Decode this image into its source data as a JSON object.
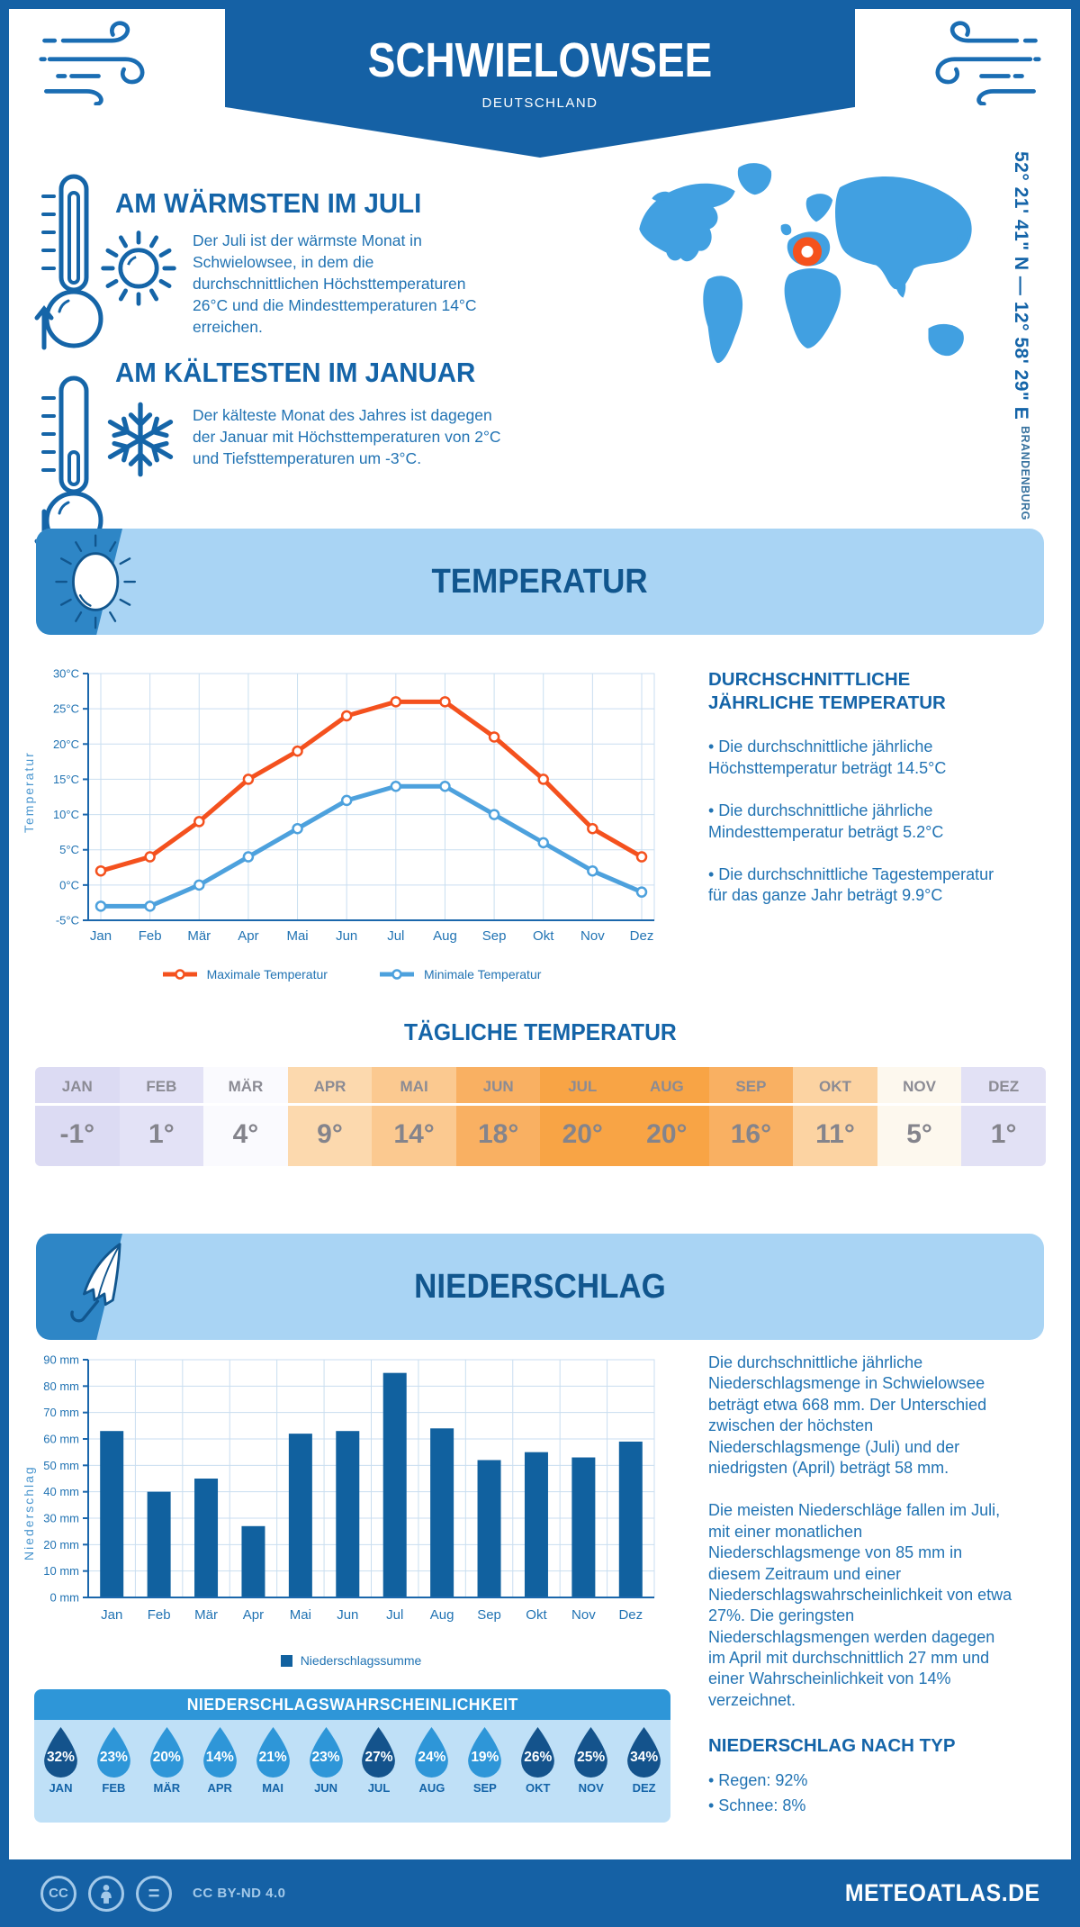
{
  "meta": {
    "colors": {
      "brand_dark_blue": "#1561a5",
      "heading_blue": "#1464a8",
      "body_text_blue": "#2173b3",
      "banner_light_blue": "#a9d4f4",
      "banner_accent_blue": "#2e86c6",
      "map_blue": "#41a0e1",
      "marker_orange": "#f5521d",
      "line_max_color": "#f4511e",
      "line_min_color": "#4da1dd",
      "bar_color": "#11619f",
      "grid_color": "#c9def0",
      "prob_header_blue": "#2e96d8",
      "prob_body_blue": "#bfe0f7",
      "drop_dark": "#14538c",
      "drop_light": "#2e96d8",
      "table_text_gray": "#84848c"
    }
  },
  "header": {
    "title": "SCHWIELOWSEE",
    "subtitle": "DEUTSCHLAND"
  },
  "warmest": {
    "title": "AM WÄRMSTEN IM JULI",
    "text": "Der Juli ist der wärmste Monat in Schwielowsee, in dem die durchschnittlichen Höchsttemperaturen 26°C und die Mindesttemperaturen 14°C erreichen."
  },
  "coldest": {
    "title": "AM KÄLTESTEN IM JANUAR",
    "text": "Der kälteste Monat des Jahres ist dagegen der Januar mit Höchsttemperaturen von 2°C und Tiefsttemperaturen um -3°C."
  },
  "map": {
    "coordinates": "52° 21' 41\" N — 12° 58' 29\" E",
    "region": "BRANDENBURG"
  },
  "temperature_section": {
    "banner_title": "TEMPERATUR",
    "y_axis_label": "Temperatur",
    "annual_heading": "DURCHSCHNITTLICHE JÄHRLICHE TEMPERATUR",
    "bullet_max": "• Die durchschnittliche jährliche Höchsttemperatur beträgt 14.5°C",
    "bullet_min": "• Die durchschnittliche jährliche Mindesttemperatur beträgt 5.2°C",
    "bullet_day": "• Die durchschnittliche Tagestemperatur für das ganze Jahr beträgt 9.9°C"
  },
  "precipitation_section": {
    "banner_title": "NIEDERSCHLAG",
    "y_axis_label": "Niederschlag",
    "paragraph1": "Die durchschnittliche jährliche Niederschlagsmenge in Schwielowsee beträgt etwa 668 mm. Der Unterschied zwischen der höchsten Niederschlagsmenge (Juli) und der niedrigsten (April) beträgt 58 mm.",
    "paragraph2": "Die meisten Niederschläge fallen im Juli, mit einer monatlichen Niederschlagsmenge von 85 mm in diesem Zeitraum und einer Niederschlagswahrscheinlichkeit von etwa 27%. Die geringsten Niederschlagsmengen werden dagegen im April mit durchschnittlich 27 mm und einer Wahrscheinlichkeit von 14% verzeichnet.",
    "type_heading": "NIEDERSCHLAG NACH TYP",
    "bullet_rain": "• Regen: 92%",
    "bullet_snow": "• Schnee: 8%"
  },
  "chart_data": [
    {
      "type": "line",
      "title": "TEMPERATUR",
      "categories": [
        "Jan",
        "Feb",
        "Mär",
        "Apr",
        "Mai",
        "Jun",
        "Jul",
        "Aug",
        "Sep",
        "Okt",
        "Nov",
        "Dez"
      ],
      "series": [
        {
          "name": "Maximale Temperatur",
          "color": "#f4511e",
          "values": [
            2,
            4,
            9,
            15,
            19,
            24,
            26,
            26,
            21,
            15,
            8,
            4
          ]
        },
        {
          "name": "Minimale Temperatur",
          "color": "#4da1dd",
          "values": [
            -3,
            -3,
            0,
            4,
            8,
            12,
            14,
            14,
            10,
            6,
            2,
            -1
          ]
        }
      ],
      "xlabel": "",
      "ylabel": "Temperatur",
      "ylim": [
        -5,
        30
      ],
      "ytick_step": 5,
      "yunit": "°C",
      "grid": true,
      "legend_position": "bottom"
    },
    {
      "type": "bar",
      "title": "NIEDERSCHLAG",
      "categories": [
        "Jan",
        "Feb",
        "Mär",
        "Apr",
        "Mai",
        "Jun",
        "Jul",
        "Aug",
        "Sep",
        "Okt",
        "Nov",
        "Dez"
      ],
      "series": [
        {
          "name": "Niederschlagssumme",
          "color": "#11619f",
          "values": [
            63,
            40,
            45,
            27,
            62,
            63,
            85,
            64,
            52,
            55,
            53,
            59
          ]
        }
      ],
      "xlabel": "",
      "ylabel": "Niederschlag",
      "ylim": [
        0,
        90
      ],
      "ytick_step": 10,
      "yunit": " mm",
      "grid": true,
      "legend_position": "bottom"
    },
    {
      "type": "table",
      "title": "TÄGLICHE TEMPERATUR",
      "categories": [
        "JAN",
        "FEB",
        "MÄR",
        "APR",
        "MAI",
        "JUN",
        "JUL",
        "AUG",
        "SEP",
        "OKT",
        "NOV",
        "DEZ"
      ],
      "values": [
        "-1°",
        "1°",
        "4°",
        "9°",
        "14°",
        "18°",
        "20°",
        "20°",
        "16°",
        "11°",
        "5°",
        "1°"
      ],
      "cell_colors": [
        "#dcdbf3",
        "#e3e2f6",
        "#fafafe",
        "#fcd9ae",
        "#fbc990",
        "#f9b062",
        "#f8a445",
        "#f8a445",
        "#f9b062",
        "#fcd3a2",
        "#fdf8ee",
        "#e2e1f5"
      ]
    },
    {
      "type": "table",
      "title": "NIEDERSCHLAGSWAHRSCHEINLICHKEIT",
      "categories": [
        "JAN",
        "FEB",
        "MÄR",
        "APR",
        "MAI",
        "JUN",
        "JUL",
        "AUG",
        "SEP",
        "OKT",
        "NOV",
        "DEZ"
      ],
      "values": [
        "32%",
        "23%",
        "20%",
        "14%",
        "21%",
        "23%",
        "27%",
        "24%",
        "19%",
        "26%",
        "25%",
        "34%"
      ],
      "emphasized": [
        true,
        false,
        false,
        false,
        false,
        false,
        true,
        false,
        false,
        true,
        true,
        true
      ]
    }
  ],
  "footer": {
    "license": "CC BY-ND 4.0",
    "site": "METEOATLAS.DE"
  }
}
